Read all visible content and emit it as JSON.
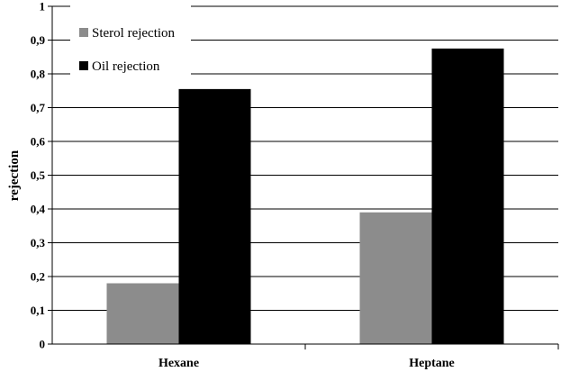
{
  "chart_data": {
    "type": "bar",
    "title": "",
    "xlabel": "",
    "ylabel": "rejection",
    "categories": [
      "Hexane",
      "Heptane"
    ],
    "series": [
      {
        "name": "Sterol rejection",
        "values": [
          0.18,
          0.39
        ],
        "color": "#8c8c8c"
      },
      {
        "name": "Oil rejection",
        "values": [
          0.755,
          0.875
        ],
        "color": "#000000"
      }
    ],
    "ylim": [
      0,
      1
    ],
    "yticks": [
      0,
      0.1,
      0.2,
      0.3,
      0.4,
      0.5,
      0.6,
      0.7,
      0.8,
      0.9,
      1
    ],
    "ytick_labels": [
      "0",
      "0,1",
      "0,2",
      "0,3",
      "0,4",
      "0,5",
      "0,6",
      "0,7",
      "0,8",
      "0,9",
      "1"
    ],
    "grid": true,
    "legend": "top-left"
  }
}
